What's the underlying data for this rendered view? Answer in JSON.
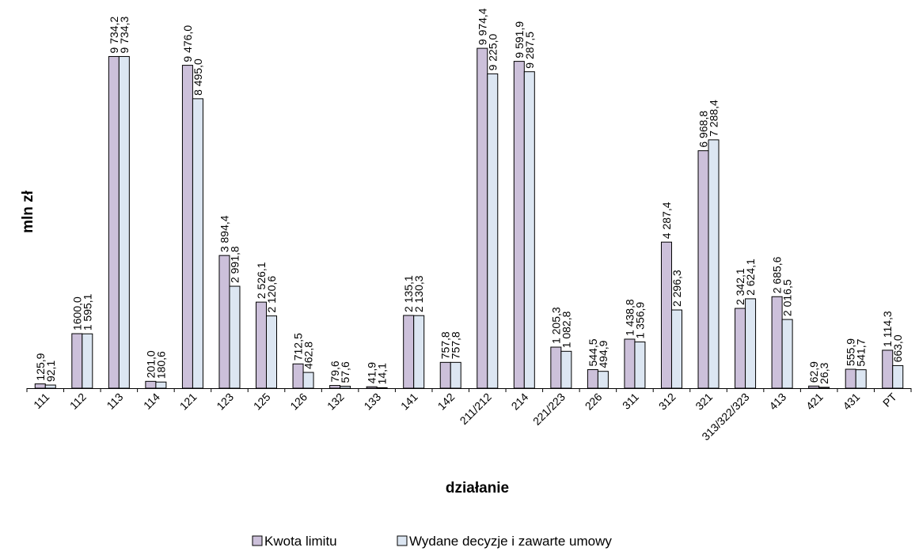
{
  "chart_data": {
    "type": "bar",
    "title": "",
    "xlabel": "działanie",
    "ylabel": "mln zł",
    "ylim": [
      0,
      10000
    ],
    "grid": false,
    "legend_position": "bottom",
    "categories": [
      "111",
      "112",
      "113",
      "114",
      "121",
      "123",
      "125",
      "126",
      "132",
      "133",
      "141",
      "142",
      "211/212",
      "214",
      "221/223",
      "226",
      "311",
      "312",
      "321",
      "313/322/323",
      "413",
      "421",
      "431",
      "PT"
    ],
    "series": [
      {
        "name": "Kwota limitu",
        "color": "#ccc0da",
        "values": [
          125.9,
          1600.0,
          9734.2,
          201.0,
          9476.0,
          3894.4,
          2526.1,
          712.5,
          79.6,
          41.9,
          2135.1,
          757.8,
          9974.4,
          9591.9,
          1205.3,
          544.5,
          1438.8,
          4287.4,
          6968.8,
          2342.1,
          2685.6,
          62.9,
          555.9,
          1114.3
        ],
        "labels": [
          "125,9",
          "1600,0",
          "9 734,2",
          "201,0",
          "9 476,0",
          "3 894,4",
          "2 526,1",
          "712,5",
          "79,6",
          "41,9",
          "2 135,1",
          "757,8",
          "9 974,4",
          "9 591,9",
          "1 205,3",
          "544,5",
          "1 438,8",
          "4 287,4",
          "6 968,8",
          "2 342,1",
          "2 685,6",
          "62,9",
          "555,9",
          "1 114,3"
        ]
      },
      {
        "name": "Wydane decyzje i zawarte umowy",
        "color": "#dce6f2",
        "values": [
          92.1,
          1595.1,
          9734.3,
          180.6,
          8495.0,
          2991.8,
          2120.6,
          462.8,
          57.6,
          14.1,
          2130.3,
          757.8,
          9225.0,
          9287.5,
          1082.8,
          494.9,
          1356.9,
          2296.3,
          7288.4,
          2624.1,
          2016.5,
          26.3,
          541.7,
          663.0
        ],
        "labels": [
          "92,1",
          "1 595,1",
          "9 734,3",
          "180,6",
          "8 495,0",
          "2 991,8",
          "2 120,6",
          "462,8",
          "57,6",
          "14,1",
          "2 130,3",
          "757,8",
          "9 225,0",
          "9 287,5",
          "1 082,8",
          "494,9",
          "1 356,9",
          "2 296,3",
          "7 288,4",
          "2 624,1",
          "2 016,5",
          "26,3",
          "541,7",
          "663,0"
        ]
      }
    ]
  }
}
